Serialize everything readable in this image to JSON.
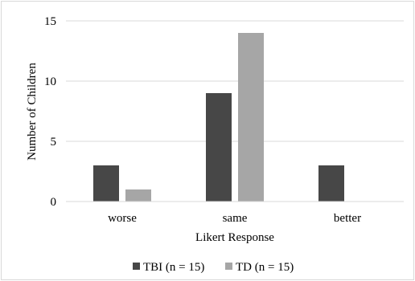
{
  "chart_data": {
    "type": "bar",
    "categories": [
      "worse",
      "same",
      "better"
    ],
    "series": [
      {
        "name": "TBI (n = 15)",
        "values": [
          3,
          9,
          3
        ],
        "color": "#474747"
      },
      {
        "name": "TD (n = 15)",
        "values": [
          1,
          14,
          0
        ],
        "color": "#a6a6a6"
      }
    ],
    "xlabel": "Likert Response",
    "ylabel": "Number of Children",
    "ylim": [
      0,
      15
    ],
    "yticks": [
      0,
      5,
      10,
      15
    ],
    "grid": true,
    "legend_position": "bottom"
  }
}
